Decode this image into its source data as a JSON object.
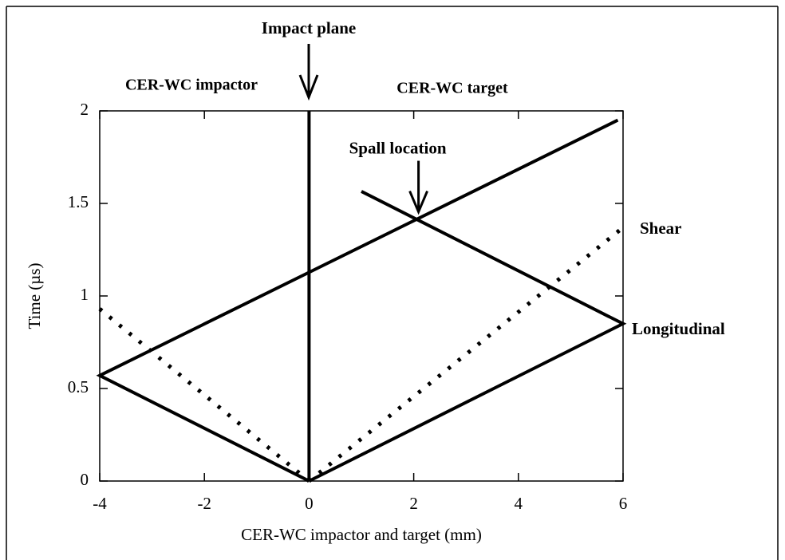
{
  "chart_data": {
    "type": "line",
    "x_label": "CER-WC impactor and target (mm)",
    "y_label": "Time (µs)",
    "xlim": [
      -4,
      6
    ],
    "xticks": [
      -4,
      -2,
      0,
      2,
      4,
      6
    ],
    "ylim": [
      0,
      2
    ],
    "yticks": [
      0,
      0.5,
      1,
      1.5,
      2
    ],
    "series": [
      {
        "name": "Impact plane",
        "color": "#000000",
        "style": "solid",
        "x": [
          0,
          0
        ],
        "values": [
          0,
          2
        ]
      },
      {
        "name": "Longitudinal",
        "color": "#000000",
        "style": "solid",
        "x": [
          0,
          -4,
          5.9,
          null,
          0,
          6,
          1
        ],
        "values": [
          0,
          0.57,
          1.95,
          null,
          0,
          0.85,
          1.565
        ]
      },
      {
        "name": "Shear",
        "color": "#000000",
        "style": "dotted",
        "x": [
          0,
          -4,
          null,
          0,
          6
        ],
        "values": [
          0,
          0.93,
          null,
          0,
          1.37
        ]
      }
    ],
    "regions": [
      "CER-WC impactor",
      "CER-WC target"
    ],
    "annotation": {
      "text": "Spall location",
      "x": 2,
      "y": 1.42
    }
  }
}
